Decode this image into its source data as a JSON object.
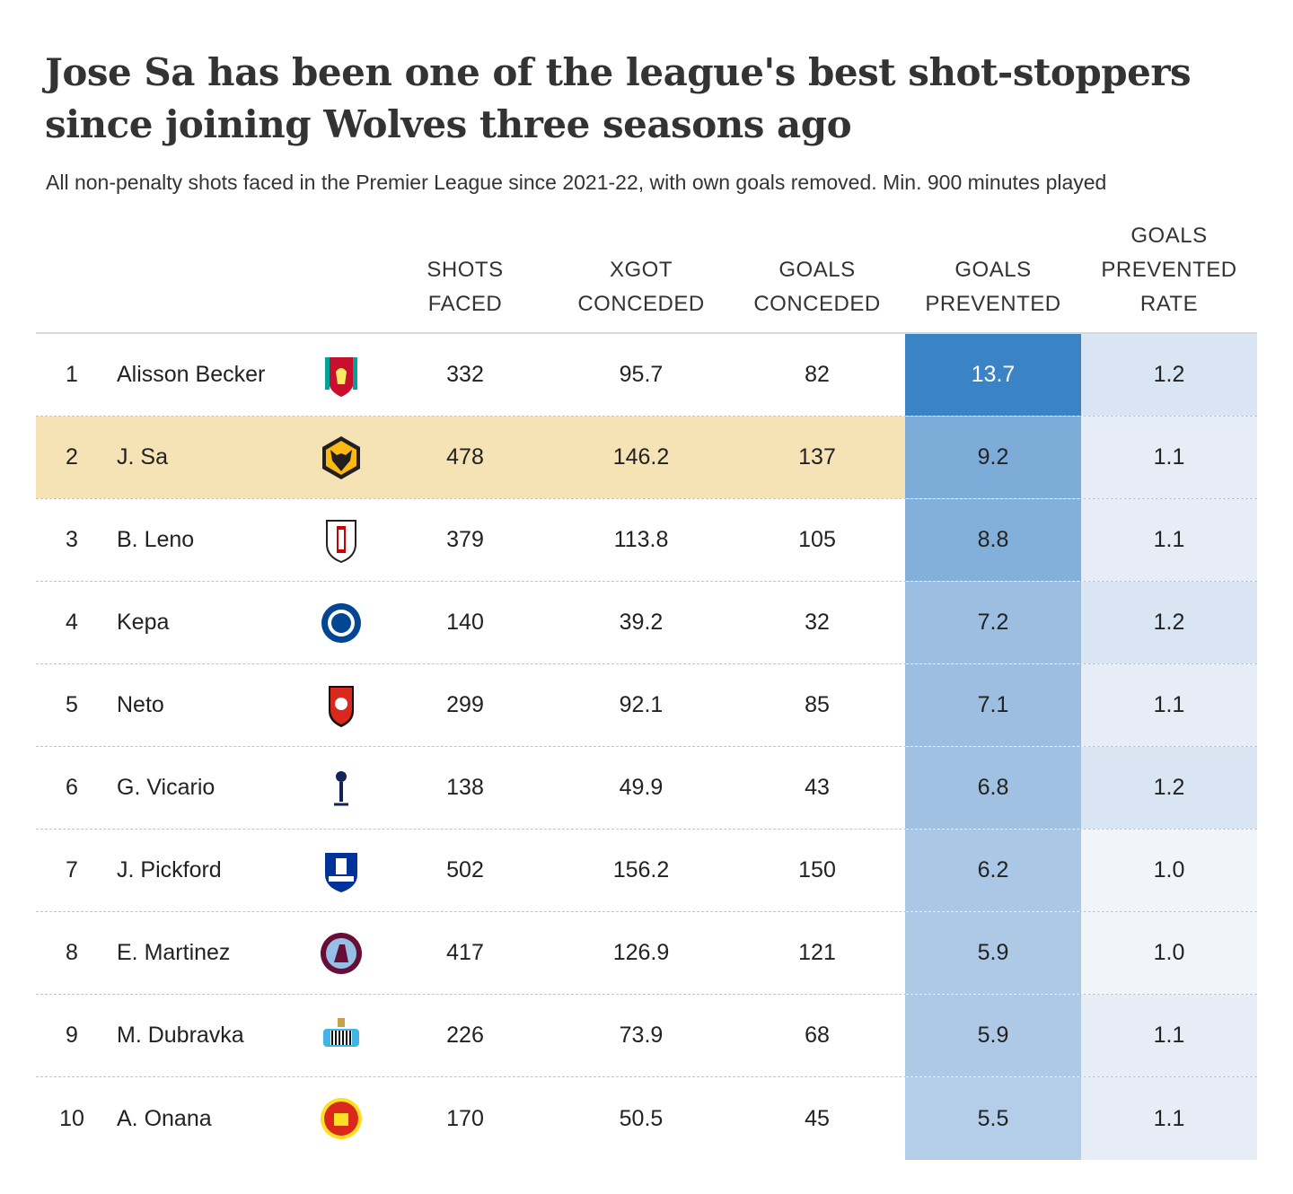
{
  "title": "Jose Sa has been one of the league's best shot-stoppers since joining Wolves three seasons ago",
  "subtitle": "All non-penalty shots faced in the Premier League since 2021-22, with own goals removed. Min. 900 minutes played",
  "columns": {
    "shots": [
      "SHOTS",
      "FACED"
    ],
    "xgot": [
      "XGOT",
      "CONCEDED"
    ],
    "goals": [
      "GOALS",
      "CONCEDED"
    ],
    "prevented": [
      "GOALS",
      "PREVENTED"
    ],
    "rate": [
      "GOALS",
      "PREVENTED",
      "RATE"
    ]
  },
  "colors": {
    "highlight_row": "#f5e3b6",
    "prevented_max": "#3a84c6",
    "prevented_min": "#b4cde8",
    "rate_max": "#dae5f3",
    "rate_min": "#f1f4f9"
  },
  "chart_data": {
    "type": "table",
    "highlighted_rank": 2,
    "rows": [
      {
        "rank": "1",
        "name": "Alisson Becker",
        "club": "Liverpool",
        "crest": "liverpool-crest-icon",
        "crest_color": "#c8102e",
        "shots": "332",
        "xgot": "95.7",
        "goals": "82",
        "prevented": "13.7",
        "rate": "1.2"
      },
      {
        "rank": "2",
        "name": "J. Sa",
        "club": "Wolverhampton Wanderers",
        "crest": "wolves-crest-icon",
        "crest_color": "#fdb913",
        "shots": "478",
        "xgot": "146.2",
        "goals": "137",
        "prevented": "9.2",
        "rate": "1.1"
      },
      {
        "rank": "3",
        "name": "B. Leno",
        "club": "Fulham",
        "crest": "fulham-crest-icon",
        "crest_color": "#cc0000",
        "shots": "379",
        "xgot": "113.8",
        "goals": "105",
        "prevented": "8.8",
        "rate": "1.1"
      },
      {
        "rank": "4",
        "name": "Kepa",
        "club": "Chelsea",
        "crest": "chelsea-crest-icon",
        "crest_color": "#034694",
        "shots": "140",
        "xgot": "39.2",
        "goals": "32",
        "prevented": "7.2",
        "rate": "1.2"
      },
      {
        "rank": "5",
        "name": "Neto",
        "club": "Bournemouth",
        "crest": "bournemouth-crest-icon",
        "crest_color": "#da291c",
        "shots": "299",
        "xgot": "92.1",
        "goals": "85",
        "prevented": "7.1",
        "rate": "1.1"
      },
      {
        "rank": "6",
        "name": "G. Vicario",
        "club": "Tottenham Hotspur",
        "crest": "tottenham-crest-icon",
        "crest_color": "#132257",
        "shots": "138",
        "xgot": "49.9",
        "goals": "43",
        "prevented": "6.8",
        "rate": "1.2"
      },
      {
        "rank": "7",
        "name": "J. Pickford",
        "club": "Everton",
        "crest": "everton-crest-icon",
        "crest_color": "#003399",
        "shots": "502",
        "xgot": "156.2",
        "goals": "150",
        "prevented": "6.2",
        "rate": "1.0"
      },
      {
        "rank": "8",
        "name": "E. Martinez",
        "club": "Aston Villa",
        "crest": "aston-villa-crest-icon",
        "crest_color": "#670e36",
        "shots": "417",
        "xgot": "126.9",
        "goals": "121",
        "prevented": "5.9",
        "rate": "1.0"
      },
      {
        "rank": "9",
        "name": "M. Dubravka",
        "club": "Newcastle United",
        "crest": "newcastle-crest-icon",
        "crest_color": "#41b6e6",
        "shots": "226",
        "xgot": "73.9",
        "goals": "68",
        "prevented": "5.9",
        "rate": "1.1"
      },
      {
        "rank": "10",
        "name": "A. Onana",
        "club": "Manchester United",
        "crest": "man-utd-crest-icon",
        "crest_color": "#da291c",
        "shots": "170",
        "xgot": "50.5",
        "goals": "45",
        "prevented": "5.5",
        "rate": "1.1"
      }
    ]
  }
}
